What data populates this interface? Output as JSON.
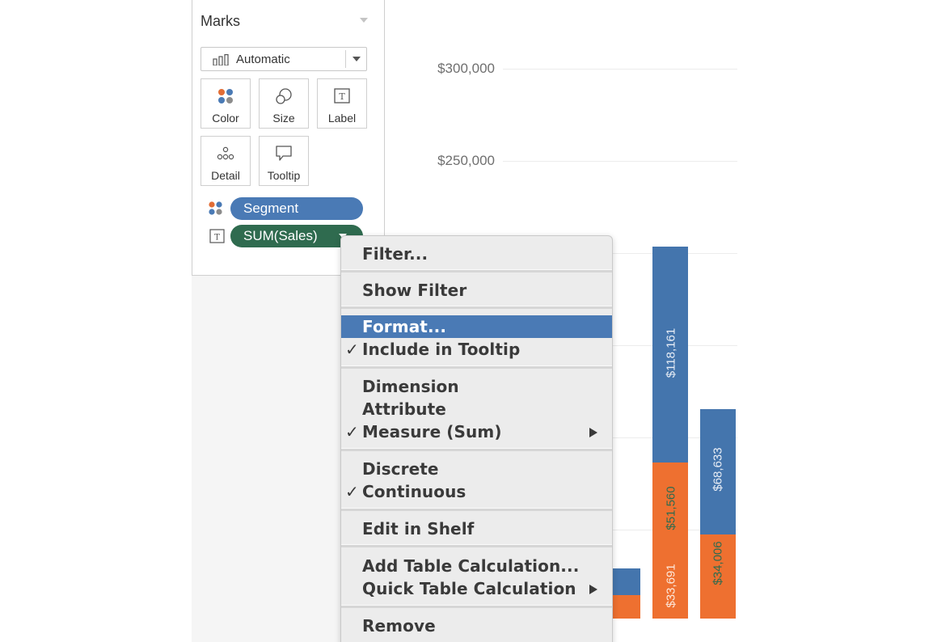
{
  "marks": {
    "title": "Marks",
    "mark_type": "Automatic",
    "buttons": {
      "color": "Color",
      "size": "Size",
      "label": "Label",
      "detail": "Detail",
      "tooltip": "Tooltip"
    },
    "pills": {
      "segment": "Segment",
      "sales": "SUM(Sales)"
    }
  },
  "colors": {
    "blue_series": "#4475ad",
    "orange_series": "#ee7030",
    "dimension_pill": "#4a7ab5",
    "measure_pill": "#2f6b4f",
    "menu_highlight": "#4a7ab5"
  },
  "axis": {
    "ticks": [
      "$300,000",
      "$250,000"
    ]
  },
  "bar_labels": {
    "b1_blue": "$118,161",
    "b1_orange_top": "$51,560",
    "b1_orange_bottom": "$33,691",
    "b2_blue": "$68,633",
    "b2_orange": "$34,006"
  },
  "menu": {
    "filter": "Filter...",
    "show_filter": "Show Filter",
    "format": "Format...",
    "include_tooltip": "Include in Tooltip",
    "dimension": "Dimension",
    "attribute": "Attribute",
    "measure": "Measure (Sum)",
    "discrete": "Discrete",
    "continuous": "Continuous",
    "edit_in_shelf": "Edit in Shelf",
    "add_table_calc": "Add Table Calculation...",
    "quick_table_calc": "Quick Table Calculation",
    "remove": "Remove",
    "check_mark": "✓"
  }
}
